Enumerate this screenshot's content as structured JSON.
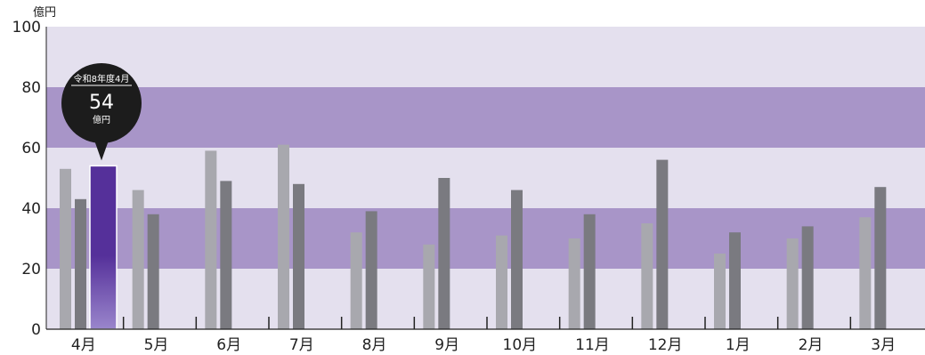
{
  "chart_data": {
    "type": "bar",
    "unit": "億円",
    "ylim": [
      0,
      100
    ],
    "yticks": [
      0,
      20,
      40,
      60,
      80,
      100
    ],
    "categories": [
      "4月",
      "5月",
      "6月",
      "7月",
      "8月",
      "9月",
      "10月",
      "11月",
      "12月",
      "1月",
      "2月",
      "3月"
    ],
    "series": [
      {
        "values": [
          53,
          46,
          59,
          61,
          32,
          28,
          31,
          30,
          35,
          25,
          30,
          37
        ]
      },
      {
        "values": [
          43,
          38,
          49,
          48,
          39,
          50,
          46,
          38,
          56,
          32,
          34,
          47
        ]
      },
      {
        "values": [
          54,
          null,
          null,
          null,
          null,
          null,
          null,
          null,
          null,
          null,
          null,
          null
        ]
      }
    ],
    "tooltip": {
      "category": "4月",
      "heading": "令和8年度4月",
      "value": "54",
      "unit": "億円"
    },
    "colors": {
      "series_light": "#a8a8ae",
      "series_dark": "#7a7a80",
      "highlight_top": "#55309a",
      "highlight_bottom": "#9a86cc",
      "band_light": "#e4e0ee",
      "band_dark": "#a895c8",
      "tooltip_bg": "#1c1c1c"
    }
  }
}
